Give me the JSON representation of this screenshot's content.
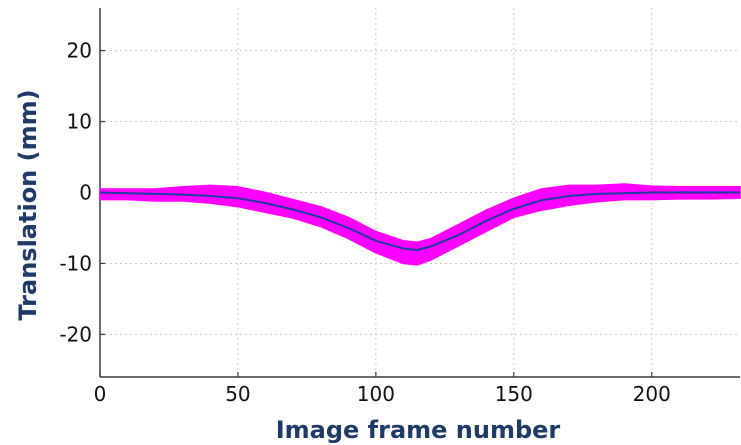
{
  "chart_data": {
    "type": "line",
    "title": "",
    "xlabel": "Image frame number",
    "ylabel": "Translation (mm)",
    "xlim": [
      0,
      232
    ],
    "ylim": [
      -26,
      26
    ],
    "x_ticks": [
      0,
      50,
      100,
      150,
      200
    ],
    "y_ticks": [
      -20,
      -10,
      0,
      10,
      20
    ],
    "grid": true,
    "legend": "none",
    "series": [
      {
        "kind": "band",
        "color": "#ff00ff",
        "x": [
          0,
          10,
          20,
          30,
          40,
          50,
          60,
          70,
          80,
          90,
          100,
          110,
          115,
          120,
          130,
          140,
          150,
          160,
          170,
          180,
          190,
          200,
          210,
          220,
          232
        ],
        "lower": [
          -1.0,
          -1.0,
          -1.2,
          -1.2,
          -1.5,
          -2.0,
          -2.8,
          -3.6,
          -4.8,
          -6.5,
          -8.5,
          -10.0,
          -10.2,
          -9.5,
          -7.5,
          -5.5,
          -3.5,
          -2.5,
          -1.8,
          -1.3,
          -1.0,
          -1.0,
          -0.9,
          -0.9,
          -0.8
        ],
        "upper": [
          0.5,
          0.5,
          0.5,
          0.8,
          1.0,
          0.8,
          0.0,
          -1.0,
          -2.0,
          -3.5,
          -5.5,
          -6.8,
          -7.0,
          -6.5,
          -4.5,
          -2.5,
          -0.8,
          0.5,
          1.0,
          1.0,
          1.2,
          0.9,
          0.8,
          0.8,
          0.8
        ]
      },
      {
        "kind": "line",
        "color": "#1f3aa0",
        "x": [
          0,
          10,
          20,
          30,
          40,
          50,
          60,
          70,
          80,
          90,
          100,
          110,
          115,
          120,
          130,
          140,
          150,
          160,
          170,
          180,
          190,
          200,
          210,
          220,
          232
        ],
        "y": [
          0.0,
          -0.1,
          -0.2,
          -0.3,
          -0.5,
          -0.8,
          -1.5,
          -2.4,
          -3.5,
          -5.0,
          -6.8,
          -7.9,
          -8.1,
          -7.6,
          -6.0,
          -4.0,
          -2.3,
          -1.1,
          -0.5,
          -0.2,
          -0.1,
          0.0,
          0.0,
          0.0,
          0.0
        ]
      }
    ]
  }
}
